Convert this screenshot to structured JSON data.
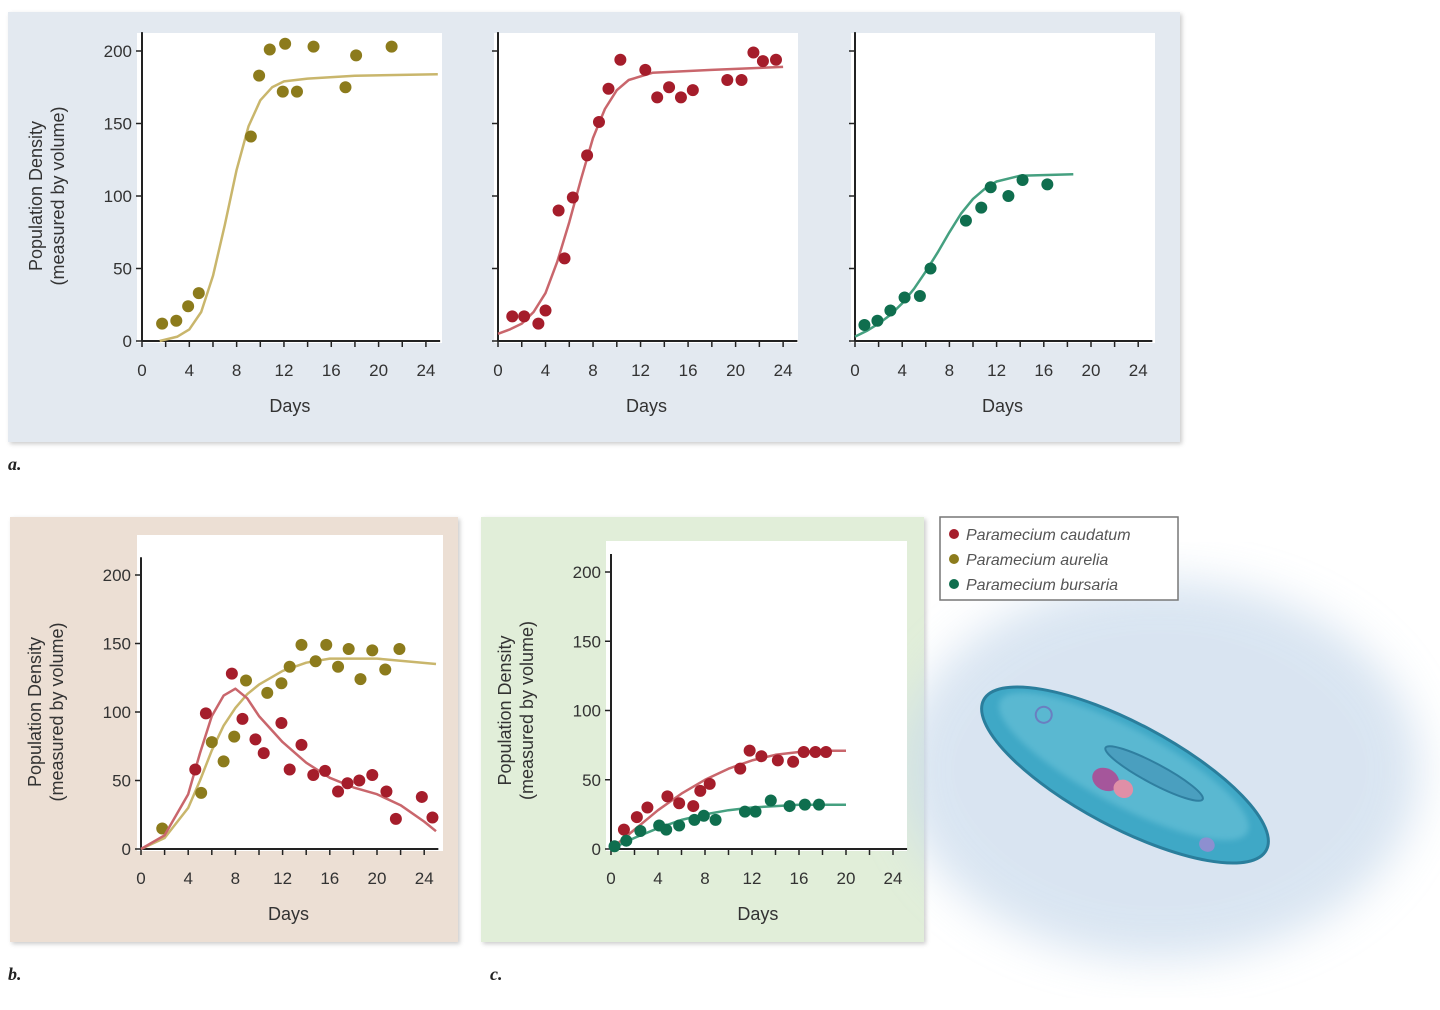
{
  "colors": {
    "aurelia_dot": "#8c7b1c",
    "aurelia_line": "#c9b66c",
    "caudatum_dot": "#a51d2b",
    "caudatum_line": "#c9666c",
    "bursaria_dot": "#0f6e4e",
    "bursaria_line": "#45a080",
    "panel_a_bg": "#e3e9f0",
    "panel_b_bg": "#ecdfd4",
    "panel_c_bg": "#e1eed9"
  },
  "panel_labels": {
    "a": "a.",
    "b": "b.",
    "c": "c."
  },
  "legend": [
    {
      "label": "Paramecium caudatum",
      "species": "caudatum"
    },
    {
      "label": "Paramecium aurelia",
      "species": "aurelia"
    },
    {
      "label": "Paramecium bursaria",
      "species": "bursaria"
    }
  ],
  "illustration": "paramecium",
  "chart_data": [
    {
      "id": "a1",
      "type": "scatter",
      "panel": "a",
      "xlabel": "Days",
      "ylabel": [
        "Population Density",
        "(measured by volume)"
      ],
      "xlim": [
        0,
        24
      ],
      "ylim": [
        0,
        200
      ],
      "xticks": [
        0,
        4,
        8,
        12,
        16,
        20,
        24
      ],
      "yticks": [
        0,
        50,
        100,
        150,
        200
      ],
      "show_yticks": true,
      "grid": false,
      "series": [
        {
          "species": "aurelia",
          "points": [
            [
              1.7,
              12
            ],
            [
              2.9,
              14
            ],
            [
              3.9,
              24
            ],
            [
              4.8,
              33
            ],
            [
              9.2,
              141
            ],
            [
              9.9,
              183
            ],
            [
              10.8,
              201
            ],
            [
              12.1,
              205
            ],
            [
              11.9,
              172
            ],
            [
              13.1,
              172
            ],
            [
              14.5,
              203
            ],
            [
              17.2,
              175
            ],
            [
              18.1,
              197
            ],
            [
              21.1,
              203
            ]
          ],
          "fit": [
            [
              1.5,
              0
            ],
            [
              3,
              3
            ],
            [
              4,
              8
            ],
            [
              5,
              20
            ],
            [
              6,
              45
            ],
            [
              7,
              80
            ],
            [
              8,
              118
            ],
            [
              9,
              148
            ],
            [
              10,
              166
            ],
            [
              11,
              175
            ],
            [
              12,
              179
            ],
            [
              14,
              181
            ],
            [
              18,
              183
            ],
            [
              25,
              184
            ]
          ]
        }
      ]
    },
    {
      "id": "a2",
      "type": "scatter",
      "panel": "a",
      "xlabel": "Days",
      "ylabel": [],
      "xlim": [
        0,
        24
      ],
      "ylim": [
        0,
        200
      ],
      "xticks": [
        0,
        4,
        8,
        12,
        16,
        20,
        24
      ],
      "yticks": [
        0,
        50,
        100,
        150,
        200
      ],
      "show_yticks": false,
      "grid": false,
      "series": [
        {
          "species": "caudatum",
          "points": [
            [
              1.2,
              17
            ],
            [
              2.2,
              17
            ],
            [
              3.4,
              12
            ],
            [
              4,
              21
            ],
            [
              5.1,
              90
            ],
            [
              5.6,
              57
            ],
            [
              6.3,
              99
            ],
            [
              7.5,
              128
            ],
            [
              8.5,
              151
            ],
            [
              9.3,
              174
            ],
            [
              10.3,
              194
            ],
            [
              12.4,
              187
            ],
            [
              13.4,
              168
            ],
            [
              14.4,
              175
            ],
            [
              15.4,
              168
            ],
            [
              16.4,
              173
            ],
            [
              19.3,
              180
            ],
            [
              20.5,
              180
            ],
            [
              21.5,
              199
            ],
            [
              22.3,
              193
            ],
            [
              23.4,
              194
            ]
          ],
          "fit": [
            [
              0,
              5
            ],
            [
              1,
              8
            ],
            [
              2,
              12
            ],
            [
              3,
              20
            ],
            [
              4,
              33
            ],
            [
              5,
              55
            ],
            [
              6,
              82
            ],
            [
              7,
              112
            ],
            [
              8,
              140
            ],
            [
              9,
              160
            ],
            [
              10,
              173
            ],
            [
              11,
              180
            ],
            [
              13,
              185
            ],
            [
              18,
              187
            ],
            [
              24,
              189
            ]
          ]
        }
      ]
    },
    {
      "id": "a3",
      "type": "scatter",
      "panel": "a",
      "xlabel": "Days",
      "ylabel": [],
      "xlim": [
        0,
        24
      ],
      "ylim": [
        0,
        200
      ],
      "xticks": [
        0,
        4,
        8,
        12,
        16,
        20,
        24
      ],
      "yticks": [
        0,
        50,
        100,
        150,
        200
      ],
      "show_yticks": false,
      "grid": false,
      "series": [
        {
          "species": "bursaria",
          "points": [
            [
              0.8,
              11
            ],
            [
              1.9,
              14
            ],
            [
              3,
              21
            ],
            [
              4.2,
              30
            ],
            [
              5.5,
              31
            ],
            [
              6.4,
              50
            ],
            [
              9.4,
              83
            ],
            [
              10.7,
              92
            ],
            [
              11.5,
              106
            ],
            [
              13,
              100
            ],
            [
              14.2,
              111
            ],
            [
              16.3,
              108
            ]
          ],
          "fit": [
            [
              0,
              3
            ],
            [
              1,
              7
            ],
            [
              2,
              12
            ],
            [
              3,
              18
            ],
            [
              4,
              26
            ],
            [
              5,
              36
            ],
            [
              6,
              48
            ],
            [
              7,
              61
            ],
            [
              8,
              75
            ],
            [
              9,
              88
            ],
            [
              10,
              98
            ],
            [
              11,
              105
            ],
            [
              12,
              110
            ],
            [
              14,
              114
            ],
            [
              18.5,
              115
            ]
          ]
        }
      ]
    },
    {
      "id": "b",
      "type": "scatter",
      "panel": "b",
      "xlabel": "Days",
      "ylabel": [
        "Population Density",
        "(measured by volume)"
      ],
      "xlim": [
        0,
        24
      ],
      "ylim": [
        0,
        200
      ],
      "xticks": [
        0,
        4,
        8,
        12,
        16,
        20,
        24
      ],
      "yticks": [
        0,
        50,
        100,
        150,
        200
      ],
      "show_yticks": true,
      "grid": false,
      "series": [
        {
          "species": "aurelia",
          "points": [
            [
              1.8,
              15
            ],
            [
              5.1,
              41
            ],
            [
              6,
              78
            ],
            [
              7,
              64
            ],
            [
              7.9,
              82
            ],
            [
              8.9,
              123
            ],
            [
              10.7,
              114
            ],
            [
              11.9,
              121
            ],
            [
              12.6,
              133
            ],
            [
              13.6,
              149
            ],
            [
              14.8,
              137
            ],
            [
              15.7,
              149
            ],
            [
              16.7,
              133
            ],
            [
              17.6,
              146
            ],
            [
              18.6,
              124
            ],
            [
              19.6,
              145
            ],
            [
              20.7,
              131
            ],
            [
              21.9,
              146
            ]
          ],
          "fit": [
            [
              0,
              0
            ],
            [
              2,
              8
            ],
            [
              4,
              30
            ],
            [
              5,
              50
            ],
            [
              6,
              72
            ],
            [
              7,
              90
            ],
            [
              8,
              103
            ],
            [
              9,
              113
            ],
            [
              10,
              120
            ],
            [
              12,
              130
            ],
            [
              14,
              136
            ],
            [
              16,
              139
            ],
            [
              20,
              139
            ],
            [
              25,
              135
            ]
          ]
        },
        {
          "species": "caudatum",
          "points": [
            [
              4.6,
              58
            ],
            [
              5.5,
              99
            ],
            [
              7.7,
              128
            ],
            [
              8.6,
              95
            ],
            [
              9.7,
              80
            ],
            [
              10.4,
              70
            ],
            [
              11.9,
              92
            ],
            [
              12.6,
              58
            ],
            [
              13.6,
              76
            ],
            [
              14.6,
              54
            ],
            [
              15.6,
              57
            ],
            [
              16.7,
              42
            ],
            [
              17.5,
              48
            ],
            [
              18.5,
              50
            ],
            [
              19.6,
              54
            ],
            [
              20.8,
              42
            ],
            [
              21.6,
              22
            ],
            [
              23.8,
              38
            ],
            [
              24.7,
              23
            ]
          ],
          "fit": [
            [
              0,
              0
            ],
            [
              2,
              10
            ],
            [
              4,
              40
            ],
            [
              5,
              70
            ],
            [
              6,
              97
            ],
            [
              7,
              112
            ],
            [
              8,
              117
            ],
            [
              9,
              110
            ],
            [
              10,
              97
            ],
            [
              12,
              78
            ],
            [
              14,
              63
            ],
            [
              16,
              52
            ],
            [
              18,
              45
            ],
            [
              20,
              40
            ],
            [
              22,
              32
            ],
            [
              24,
              20
            ],
            [
              25,
              13
            ]
          ]
        }
      ]
    },
    {
      "id": "c",
      "type": "scatter",
      "panel": "c",
      "xlabel": "Days",
      "ylabel": [
        "Population Density",
        "(measured by volume)"
      ],
      "xlim": [
        0,
        24
      ],
      "ylim": [
        0,
        200
      ],
      "xticks": [
        0,
        4,
        8,
        12,
        16,
        20,
        24
      ],
      "yticks": [
        0,
        50,
        100,
        150,
        200
      ],
      "show_yticks": true,
      "grid": false,
      "series": [
        {
          "species": "caudatum",
          "points": [
            [
              1.1,
              14
            ],
            [
              2.2,
              23
            ],
            [
              3.1,
              30
            ],
            [
              4.8,
              38
            ],
            [
              5.8,
              33
            ],
            [
              7,
              31
            ],
            [
              7.6,
              42
            ],
            [
              8.4,
              47
            ],
            [
              11,
              58
            ],
            [
              11.8,
              71
            ],
            [
              12.8,
              67
            ],
            [
              14.2,
              64
            ],
            [
              15.5,
              63
            ],
            [
              16.4,
              70
            ],
            [
              17.4,
              70
            ],
            [
              18.3,
              70
            ]
          ],
          "fit": [
            [
              0,
              0
            ],
            [
              2,
              14
            ],
            [
              4,
              28
            ],
            [
              6,
              40
            ],
            [
              8,
              50
            ],
            [
              10,
              58
            ],
            [
              12,
              64
            ],
            [
              14,
              68
            ],
            [
              16,
              70
            ],
            [
              18,
              71
            ],
            [
              20,
              71
            ]
          ]
        },
        {
          "species": "bursaria",
          "points": [
            [
              0.3,
              2
            ],
            [
              1.3,
              6
            ],
            [
              2.5,
              13
            ],
            [
              4.1,
              17
            ],
            [
              4.7,
              14
            ],
            [
              5.8,
              17
            ],
            [
              7.1,
              21
            ],
            [
              7.9,
              24
            ],
            [
              8.9,
              21
            ],
            [
              11.4,
              27
            ],
            [
              12.3,
              27
            ],
            [
              13.6,
              35
            ],
            [
              15.2,
              31
            ],
            [
              16.5,
              32
            ],
            [
              17.7,
              32
            ]
          ],
          "fit": [
            [
              0,
              0
            ],
            [
              2,
              8
            ],
            [
              4,
              15
            ],
            [
              6,
              21
            ],
            [
              8,
              25
            ],
            [
              10,
              28
            ],
            [
              12,
              30
            ],
            [
              14,
              31
            ],
            [
              16,
              32
            ],
            [
              20,
              32
            ]
          ]
        }
      ]
    }
  ]
}
